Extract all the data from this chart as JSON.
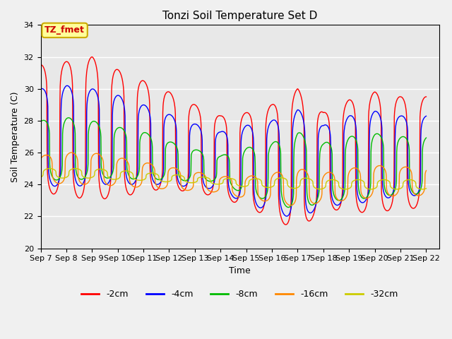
{
  "title": "Tonzi Soil Temperature Set D",
  "xlabel": "Time",
  "ylabel": "Soil Temperature (C)",
  "ylim": [
    20,
    34
  ],
  "series_labels": [
    "-2cm",
    "-4cm",
    "-8cm",
    "-16cm",
    "-32cm"
  ],
  "series_colors": [
    "#ff0000",
    "#0000ff",
    "#00bb00",
    "#ff8800",
    "#cccc00"
  ],
  "annotation_text": "TZ_fmet",
  "annotation_bg": "#ffff99",
  "annotation_border": "#ccaa00",
  "background_color": "#e8e8e8",
  "grid_color": "#ffffff",
  "tick_labels": [
    "Sep 7",
    "Sep 8",
    "Sep 9",
    "Sep 10",
    "Sep 11",
    "Sep 12",
    "Sep 13",
    "Sep 14",
    "Sep 15",
    "Sep 16",
    "Sep 17",
    "Sep 18",
    "Sep 19",
    "Sep 20",
    "Sep 21",
    "Sep 22"
  ],
  "figsize": [
    6.4,
    4.8
  ],
  "dpi": 100
}
